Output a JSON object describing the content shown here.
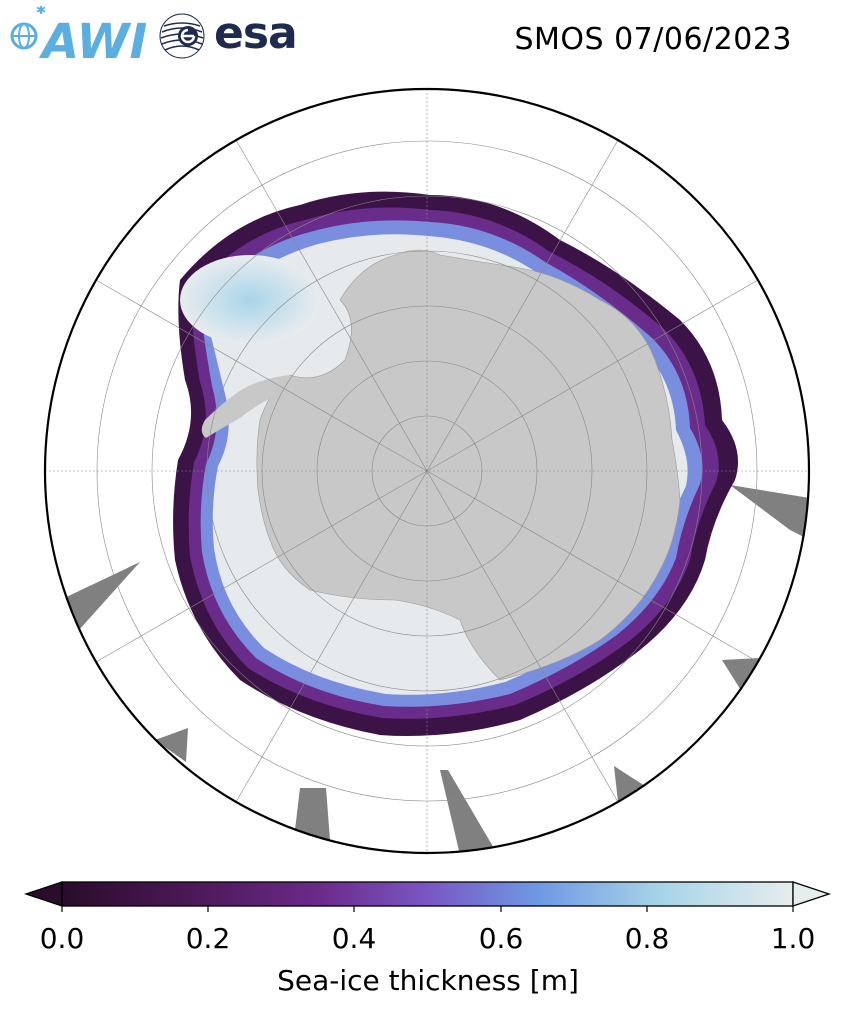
{
  "header": {
    "title": "SMOS 07/06/2023",
    "logos": {
      "awi_text": "AWI",
      "esa_text": "esa"
    }
  },
  "map": {
    "projection": "south-polar-stereographic",
    "land_color": "#c8c8c8",
    "ocean_color": "#ffffff",
    "no_data_color": "#808080",
    "graticule": true
  },
  "colorbar": {
    "label": "Sea-ice thickness [m]",
    "ticks": [
      "0.0",
      "0.2",
      "0.4",
      "0.6",
      "0.8",
      "1.0"
    ],
    "range": [
      0.0,
      1.0
    ],
    "extend": "both",
    "colors": [
      "#2a0c2b",
      "#4a1855",
      "#6b2a8a",
      "#7a56c4",
      "#6e98e4",
      "#a8d4e8",
      "#e6eded"
    ]
  }
}
